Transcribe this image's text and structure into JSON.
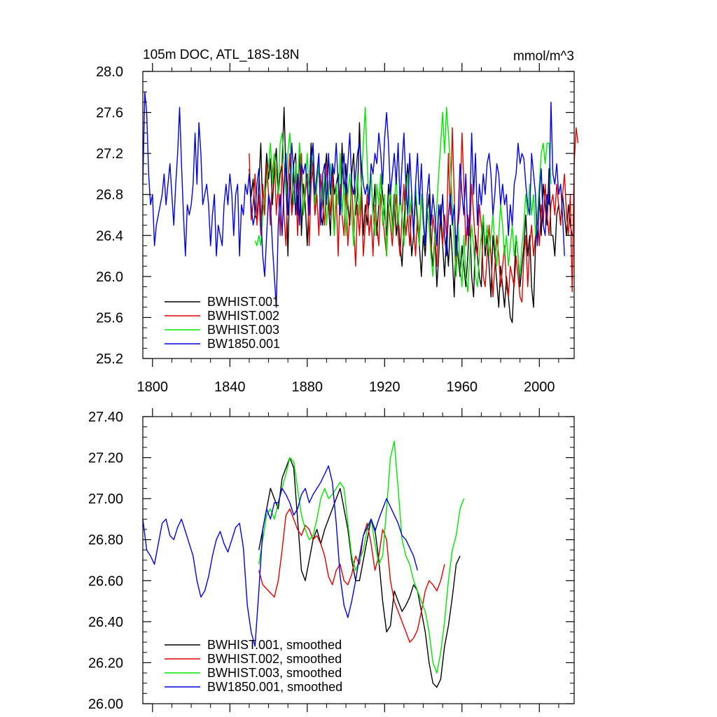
{
  "chart_data": [
    {
      "type": "line",
      "title": "105m DOC, ATL_18S-18N",
      "units": "mmol/m^3",
      "xlim": [
        1795,
        2018
      ],
      "ylim": [
        25.2,
        28.0
      ],
      "xticks": [
        1800,
        1840,
        1880,
        1920,
        1960,
        2000
      ],
      "yticks": [
        25.2,
        25.6,
        26.0,
        26.4,
        26.8,
        27.2,
        27.6,
        28.0
      ],
      "ytick_decimals": 1,
      "show_x_labels": true,
      "legend_position": "bottom-left",
      "series": [
        {
          "name": "BWHIST.001",
          "color": "#000000",
          "x_start": 1850,
          "x_step": 1,
          "values": [
            27.05,
            26.78,
            26.95,
            26.6,
            26.55,
            26.9,
            27.3,
            26.6,
            26.8,
            27.2,
            26.95,
            27.15,
            26.7,
            27.05,
            27.25,
            26.8,
            27.0,
            27.1,
            27.65,
            27.0,
            26.2,
            27.0,
            26.6,
            27.1,
            27.2,
            26.6,
            27.3,
            26.4,
            26.9,
            26.7,
            26.3,
            26.8,
            27.3,
            27.0,
            26.6,
            26.9,
            27.1,
            26.6,
            26.5,
            27.0,
            27.2,
            26.7,
            26.4,
            27.1,
            26.8,
            26.9,
            27.0,
            26.6,
            27.3,
            26.8,
            27.1,
            26.7,
            26.5,
            27.0,
            27.2,
            26.6,
            26.8,
            27.5,
            26.9,
            26.4,
            26.7,
            26.5,
            26.8,
            27.0,
            26.6,
            26.9,
            26.4,
            26.7,
            27.0,
            26.8,
            26.6,
            26.4,
            26.9,
            26.7,
            26.5,
            26.8,
            26.4,
            26.6,
            26.3,
            26.1,
            26.5,
            26.9,
            27.1,
            26.6,
            26.2,
            26.4,
            26.8,
            26.5,
            26.3,
            26.0,
            26.4,
            26.2,
            26.6,
            26.8,
            26.3,
            26.1,
            26.4,
            25.9,
            26.2,
            26.7,
            26.3,
            26.0,
            26.4,
            26.1,
            26.5,
            26.2,
            25.8,
            26.4,
            26.2,
            26.0,
            26.3,
            26.1,
            25.9,
            26.2,
            26.6,
            26.0,
            25.8,
            26.4,
            26.2,
            26.0,
            25.9,
            26.6,
            26.2,
            26.4,
            26.1,
            25.8,
            26.4,
            26.2,
            25.95,
            25.7,
            26.1,
            25.9,
            25.7,
            26.0,
            25.8,
            25.6,
            25.55,
            26.0,
            26.4,
            26.2,
            25.9,
            26.1,
            26.3,
            26.6,
            26.2,
            26.4,
            25.9,
            25.7,
            26.3,
            26.6,
            26.8,
            26.4,
            26.9,
            26.7,
            26.5,
            27.05,
            26.4,
            26.4,
            26.2,
            26.6,
            26.7,
            26.5,
            26.8,
            26.6,
            26.4,
            26.7,
            26.5,
            26.4
          ]
        },
        {
          "name": "BWHIST.002",
          "color": "#e00000",
          "x_start": 1850,
          "x_step": 1,
          "values": [
            27.2,
            26.55,
            26.7,
            27.0,
            26.5,
            26.8,
            26.4,
            26.9,
            26.6,
            27.1,
            26.8,
            26.5,
            27.0,
            27.2,
            26.6,
            26.9,
            26.4,
            27.1,
            26.6,
            26.3,
            26.9,
            27.2,
            26.6,
            26.8,
            27.0,
            26.4,
            26.9,
            27.2,
            26.6,
            26.8,
            27.0,
            26.3,
            26.9,
            27.1,
            26.6,
            26.8,
            26.4,
            27.0,
            26.7,
            26.5,
            27.1,
            26.8,
            26.6,
            27.0,
            26.4,
            26.8,
            26.2,
            26.9,
            26.6,
            26.4,
            26.9,
            26.3,
            26.6,
            26.9,
            26.5,
            26.1,
            26.7,
            26.4,
            26.8,
            26.2,
            26.5,
            26.8,
            26.4,
            26.6,
            26.2,
            26.7,
            26.5,
            26.3,
            26.8,
            26.6,
            26.4,
            26.2,
            26.7,
            26.5,
            26.3,
            26.6,
            26.8,
            26.4,
            26.2,
            26.6,
            26.9,
            26.4,
            26.6,
            26.3,
            26.7,
            26.5,
            26.2,
            26.6,
            26.4,
            26.8,
            26.5,
            26.3,
            26.7,
            26.5,
            26.2,
            26.6,
            26.4,
            26.1,
            26.7,
            26.5,
            26.3,
            26.6,
            26.4,
            27.2,
            26.6,
            27.45,
            26.8,
            26.0,
            26.5,
            26.7,
            27.4,
            26.9,
            26.3,
            26.6,
            26.4,
            26.9,
            26.6,
            26.3,
            26.2,
            26.7,
            26.5,
            26.0,
            25.9,
            26.2,
            26.5,
            26.2,
            25.8,
            26.1,
            26.4,
            26.2,
            25.9,
            26.1,
            26.3,
            25.9,
            25.8,
            26.1,
            26.0,
            25.9,
            26.2,
            26.0,
            25.8,
            25.75,
            26.2,
            26.4,
            25.9,
            26.3,
            26.5,
            26.2,
            26.4,
            26.6,
            26.3,
            26.7,
            26.5,
            26.9,
            26.6,
            26.4,
            26.7,
            26.8,
            26.6,
            26.9,
            26.7,
            26.5,
            26.8,
            27.0,
            26.6,
            26.4,
            26.8,
            25.85,
            27.1,
            27.45,
            27.3
          ]
        },
        {
          "name": "BWHIST.003",
          "color": "#00e600",
          "x_start": 1853,
          "x_step": 1,
          "values": [
            26.35,
            26.3,
            26.4,
            26.3,
            26.6,
            26.8,
            26.9,
            27.1,
            27.3,
            26.9,
            27.2,
            27.0,
            26.8,
            27.3,
            27.4,
            27.1,
            26.8,
            27.2,
            27.4,
            27.0,
            26.7,
            27.1,
            26.8,
            27.3,
            27.0,
            26.6,
            26.9,
            27.2,
            26.8,
            27.0,
            27.3,
            26.7,
            26.9,
            27.1,
            26.6,
            26.8,
            27.0,
            26.5,
            26.8,
            27.1,
            26.7,
            26.4,
            26.9,
            26.7,
            27.2,
            26.6,
            26.9,
            26.4,
            26.8,
            27.0,
            26.6,
            26.3,
            26.8,
            27.0,
            26.6,
            26.9,
            27.3,
            27.65,
            27.1,
            26.7,
            27.0,
            26.6,
            26.4,
            26.9,
            26.7,
            27.0,
            26.5,
            26.8,
            26.2,
            26.6,
            26.9,
            26.4,
            26.7,
            27.0,
            26.5,
            26.8,
            26.6,
            26.3,
            26.7,
            27.0,
            26.6,
            26.8,
            26.4,
            26.9,
            26.6,
            26.3,
            26.8,
            26.5,
            26.3,
            26.7,
            26.5,
            26.2,
            26.0,
            26.4,
            26.7,
            27.0,
            27.3,
            27.6,
            27.2,
            27.65,
            27.4,
            27.1,
            26.7,
            26.3,
            26.0,
            26.5,
            26.1,
            25.9,
            26.4,
            26.0,
            25.85,
            26.2,
            26.5,
            26.3,
            26.0,
            25.9,
            26.2,
            26.4,
            26.6,
            26.3,
            26.5,
            26.2,
            26.4,
            26.6,
            26.3,
            26.1,
            26.4,
            26.7,
            26.5,
            26.2,
            26.4,
            26.1,
            26.3,
            26.5,
            26.2,
            26.4,
            26.2,
            26.0,
            26.3,
            26.5,
            26.8,
            26.6,
            26.9,
            26.6,
            26.8,
            26.4,
            26.6,
            26.9,
            27.2,
            27.3,
            27.1,
            27.3,
            27.3,
            26.9
          ]
        },
        {
          "name": "BW1850.001",
          "color": "#0000e6",
          "x_start": 1795,
          "x_step": 1,
          "values": [
            26.9,
            27.8,
            27.6,
            27.0,
            26.7,
            26.8,
            26.3,
            26.5,
            26.6,
            26.7,
            26.8,
            27.0,
            26.7,
            26.9,
            27.1,
            26.8,
            26.5,
            26.9,
            27.2,
            27.65,
            27.1,
            26.6,
            26.2,
            26.7,
            26.6,
            26.7,
            26.9,
            27.4,
            26.9,
            27.5,
            27.2,
            26.7,
            26.8,
            26.9,
            26.7,
            26.3,
            26.6,
            26.8,
            26.2,
            26.5,
            26.4,
            26.3,
            26.7,
            26.9,
            26.7,
            27.0,
            26.8,
            26.4,
            26.8,
            26.9,
            26.2,
            26.7,
            26.6,
            26.9,
            26.8,
            27.0,
            26.7,
            26.5,
            26.6,
            26.9,
            27.05,
            26.6,
            26.2,
            26.0,
            26.4,
            26.8,
            26.7,
            26.3,
            26.0,
            25.7,
            26.5,
            26.8,
            26.4,
            26.9,
            27.2,
            26.6,
            26.9,
            27.3,
            27.0,
            26.6,
            27.0,
            26.5,
            27.1,
            27.0,
            27.1,
            26.9,
            26.6,
            27.1,
            27.3,
            26.8,
            27.0,
            27.2,
            26.5,
            27.0,
            27.1,
            26.7,
            27.2,
            26.8,
            27.1,
            27.0,
            27.3,
            26.9,
            26.6,
            27.0,
            27.2,
            26.8,
            27.1,
            27.4,
            26.9,
            26.8,
            27.0,
            27.2,
            27.3,
            27.1,
            26.9,
            26.8,
            26.9,
            26.7,
            27.1,
            27.0,
            27.2,
            27.1,
            27.4,
            27.2,
            26.9,
            27.35,
            27.6,
            27.3,
            26.8,
            27.0,
            27.2,
            26.9,
            27.3,
            26.7,
            27.1,
            27.4,
            26.9,
            26.6,
            27.2,
            26.8,
            26.4,
            26.9,
            27.2,
            26.7,
            27.1,
            26.6,
            26.3,
            26.8,
            27.0,
            26.5,
            26.8,
            26.6,
            26.3,
            26.7,
            26.5,
            26.8,
            26.4,
            26.2,
            26.6,
            26.8,
            26.5,
            26.7,
            26.2,
            26.6,
            27.1,
            26.8,
            26.6,
            27.0,
            26.4,
            26.6,
            27.4,
            26.8,
            27.2,
            26.5,
            26.9,
            26.7,
            27.0,
            26.8,
            27.1,
            27.2,
            27.0,
            26.6,
            26.8,
            27.1,
            27.0,
            26.7,
            26.9,
            26.7,
            26.8,
            26.4,
            26.7,
            26.5,
            26.9,
            27.0,
            27.3,
            27.1,
            27.2,
            27.15,
            26.9,
            26.7,
            26.6,
            27.2,
            27.0,
            26.8,
            26.3,
            26.8,
            27.05,
            26.5,
            26.4,
            26.8,
            26.7,
            27.7,
            27.0,
            26.9,
            27.1,
            26.8,
            26.9,
            26.6,
            26.2
          ]
        }
      ]
    },
    {
      "type": "line",
      "title": "",
      "xlim": [
        1795,
        2018
      ],
      "ylim": [
        26.0,
        27.4
      ],
      "xticks": [
        1800,
        1840,
        1880,
        1920,
        1960,
        2000
      ],
      "yticks": [
        26.0,
        26.2,
        26.4,
        26.6,
        26.8,
        27.0,
        27.2,
        27.4
      ],
      "ytick_decimals": 2,
      "show_x_labels": false,
      "legend_position": "bottom-left",
      "series": [
        {
          "name": "BWHIST.001, smoothed",
          "color": "#000000",
          "x_start": 1855,
          "x_step": 2,
          "values": [
            26.75,
            26.85,
            26.95,
            27.05,
            27.0,
            26.95,
            27.1,
            27.15,
            27.2,
            27.15,
            26.9,
            26.65,
            26.6,
            26.7,
            26.8,
            26.85,
            26.78,
            26.85,
            26.9,
            26.95,
            27.0,
            27.05,
            26.95,
            26.85,
            26.7,
            26.6,
            26.6,
            26.7,
            26.8,
            26.9,
            26.85,
            26.7,
            26.5,
            26.35,
            26.38,
            26.55,
            26.5,
            26.45,
            26.48,
            26.52,
            26.58,
            26.55,
            26.45,
            26.35,
            26.2,
            26.1,
            26.08,
            26.12,
            26.28,
            26.38,
            26.52,
            26.68,
            26.72
          ]
        },
        {
          "name": "BWHIST.002, smoothed",
          "color": "#e00000",
          "x_start": 1855,
          "x_step": 2,
          "values": [
            26.65,
            26.58,
            26.56,
            26.54,
            26.52,
            26.6,
            26.75,
            26.92,
            26.95,
            26.9,
            26.85,
            26.82,
            26.87,
            26.85,
            26.8,
            26.82,
            26.78,
            26.72,
            26.62,
            26.58,
            26.65,
            26.68,
            26.6,
            26.58,
            26.63,
            26.72,
            26.68,
            26.82,
            26.88,
            26.78,
            26.65,
            26.72,
            26.85,
            26.8,
            26.6,
            26.5,
            26.45,
            26.4,
            26.35,
            26.3,
            26.32,
            26.36,
            26.45,
            26.55,
            26.6,
            26.58,
            26.55,
            26.6,
            26.68
          ]
        },
        {
          "name": "BWHIST.003, smoothed",
          "color": "#00e600",
          "x_start": 1855,
          "x_step": 2,
          "values": [
            26.68,
            26.8,
            26.92,
            26.95,
            26.9,
            26.98,
            27.05,
            27.12,
            27.2,
            27.18,
            27.05,
            26.92,
            26.85,
            26.8,
            26.82,
            26.9,
            27.0,
            27.05,
            27.0,
            27.02,
            27.05,
            27.08,
            27.05,
            26.88,
            26.72,
            26.65,
            26.7,
            26.75,
            26.85,
            26.9,
            26.78,
            26.68,
            26.72,
            26.95,
            27.2,
            27.28,
            27.05,
            26.8,
            26.72,
            26.68,
            26.6,
            26.55,
            26.5,
            26.45,
            26.35,
            26.2,
            26.15,
            26.25,
            26.4,
            26.6,
            26.75,
            26.82,
            26.95,
            27.0
          ]
        },
        {
          "name": "BW1850.001, smoothed",
          "color": "#0000e6",
          "x_start": 1795,
          "x_step": 2,
          "values": [
            26.9,
            26.75,
            26.72,
            26.68,
            26.78,
            26.88,
            26.9,
            26.82,
            26.8,
            26.86,
            26.9,
            26.84,
            26.78,
            26.72,
            26.6,
            26.52,
            26.55,
            26.62,
            26.72,
            26.8,
            26.84,
            26.78,
            26.74,
            26.8,
            26.86,
            26.88,
            26.76,
            26.48,
            26.35,
            26.28,
            26.55,
            26.85,
            26.95,
            26.9,
            26.98,
            26.98,
            27.05,
            27.02,
            26.98,
            26.92,
            26.95,
            27.02,
            27.05,
            26.98,
            27.02,
            27.05,
            27.08,
            27.12,
            27.16,
            27.08,
            26.88,
            26.62,
            26.48,
            26.42,
            26.5,
            26.6,
            26.72,
            26.82,
            26.86,
            26.9,
            26.84,
            26.9,
            26.95,
            27.0,
            26.96,
            26.92,
            26.88,
            26.82,
            26.8,
            26.76,
            26.72,
            26.65
          ]
        }
      ]
    }
  ]
}
